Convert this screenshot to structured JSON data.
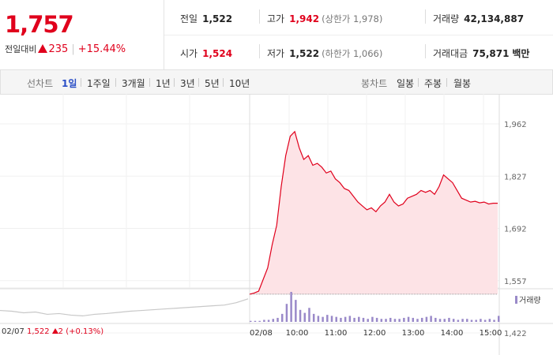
{
  "price": {
    "current": "1,757",
    "change_label": "전일대비",
    "change_value": "235",
    "change_rate": "+15.44%"
  },
  "stats": {
    "prev_close": {
      "label": "전일",
      "value": "1,522"
    },
    "high": {
      "label": "고가",
      "value": "1,942",
      "note": "(상한가 1,978)"
    },
    "volume": {
      "label": "거래량",
      "value": "42,134,887"
    },
    "open": {
      "label": "시가",
      "value": "1,524"
    },
    "low": {
      "label": "저가",
      "value": "1,522",
      "note": "(하한가 1,066)"
    },
    "amount": {
      "label": "거래대금",
      "value": "75,871",
      "unit": "백만"
    }
  },
  "toolbar": {
    "line_label": "선차트",
    "line_options": [
      "1일",
      "1주일",
      "3개월",
      "1년",
      "3년",
      "5년",
      "10년"
    ],
    "active_line": "1일",
    "candle_label": "봉차트",
    "candle_options": [
      "일봉",
      "주봉",
      "월봉"
    ]
  },
  "chart_labels": {
    "prev_date": "02/07",
    "prev_close": "1,522",
    "prev_change": "2",
    "prev_rate": "(+0.13%)",
    "cur_date": "02/08",
    "volume_legend": "거래량"
  },
  "colors": {
    "up": "#e0001c",
    "area_fill": "#fde3e6",
    "prev_line": "#c8c8c8",
    "volume": "#9a8ac9",
    "active_tab": "#2a4ec6"
  },
  "chart_data": {
    "type": "line",
    "y_ticks": [
      "1,962",
      "1,827",
      "1,692",
      "1,557",
      "1,422"
    ],
    "ylim": [
      1422,
      1962
    ],
    "x_ticks": [
      "10:00",
      "11:00",
      "12:00",
      "13:00",
      "14:00",
      "15:00"
    ],
    "baseline": 1522,
    "series": [
      {
        "values": [
          1522,
          1525,
          1530,
          1560,
          1590,
          1650,
          1700,
          1800,
          1880,
          1930,
          1942,
          1900,
          1870,
          1880,
          1855,
          1860,
          1850,
          1835,
          1840,
          1820,
          1810,
          1795,
          1790,
          1775,
          1760,
          1750,
          1740,
          1745,
          1735,
          1750,
          1760,
          1780,
          1760,
          1750,
          1755,
          1770,
          1775,
          1780,
          1790,
          1785,
          1790,
          1780,
          1800,
          1830,
          1820,
          1810,
          1790,
          1770,
          1765,
          1760,
          1762,
          1758,
          1760,
          1755,
          1757,
          1757
        ]
      }
    ],
    "previous_day_values": [
      1480,
      1478,
      1474,
      1476,
      1470,
      1472,
      1468,
      1466,
      1470,
      1472,
      1475,
      1478,
      1480,
      1482,
      1484,
      1486,
      1488,
      1490,
      1492,
      1494,
      1500,
      1510
    ],
    "volume_values": [
      1,
      1,
      1,
      2,
      2,
      3,
      4,
      8,
      18,
      30,
      22,
      12,
      9,
      14,
      8,
      6,
      5,
      7,
      6,
      5,
      4,
      5,
      6,
      4,
      5,
      4,
      3,
      5,
      4,
      3,
      3,
      4,
      3,
      3,
      4,
      5,
      4,
      3,
      4,
      5,
      6,
      4,
      3,
      3,
      4,
      3,
      2,
      3,
      3,
      2,
      2,
      3,
      2,
      3,
      2,
      6
    ]
  }
}
